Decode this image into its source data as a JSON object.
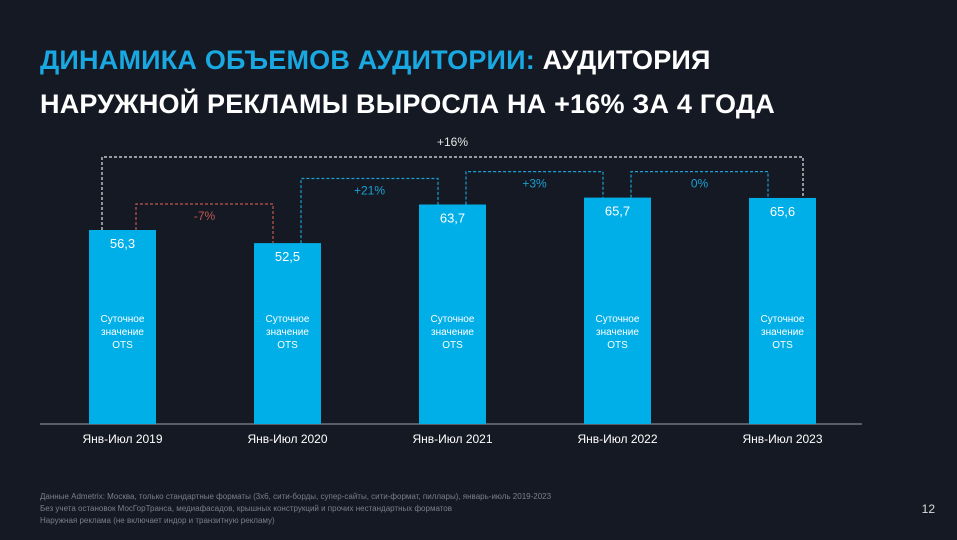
{
  "title": {
    "highlight": "ДИНАМИКА ОБЪЕМОВ АУДИТОРИИ:",
    "rest_line1": "АУДИТОРИЯ",
    "line2": "НАРУЖНОЙ РЕКЛАМЫ ВЫРОСЛА НА +16% ЗА 4 ГОДА"
  },
  "chart_data": {
    "type": "bar",
    "categories": [
      "Янв-Июл 2019",
      "Янв-Июл 2020",
      "Янв-Июл 2021",
      "Янв-Июл 2022",
      "Янв-Июл 2023"
    ],
    "values": [
      56.3,
      52.5,
      63.7,
      65.7,
      65.6
    ],
    "value_labels": [
      "56,3",
      "52,5",
      "63,7",
      "65,7",
      "65,6"
    ],
    "bar_inner_label": [
      "Суточное",
      "значение",
      "OTS"
    ],
    "ylim": [
      0,
      75
    ],
    "changes": [
      {
        "from": 0,
        "to": 1,
        "label": "-7%",
        "color": "#c0574f"
      },
      {
        "from": 1,
        "to": 2,
        "label": "+21%",
        "color": "#1a9fd3"
      },
      {
        "from": 2,
        "to": 3,
        "label": "+3%",
        "color": "#1a9fd3"
      },
      {
        "from": 3,
        "to": 4,
        "label": "0%",
        "color": "#1a9fd3"
      },
      {
        "from": 0,
        "to": 4,
        "label": "+16%",
        "color": "#e6e6e6"
      }
    ],
    "bar_color": "#00aee8"
  },
  "footnotes": [
    "Данные Admetrix: Москва, только стандартные форматы (3х6, сити-борды, супер-сайты, сити-формат, пиллары), январь-июль 2019-2023",
    "Без учета остановок МосГорТранса, медиафасадов, крышных конструкций и прочих нестандартных форматов",
    "Наружная реклама (не включает индор и транзитную рекламу)"
  ],
  "page_number": "12"
}
